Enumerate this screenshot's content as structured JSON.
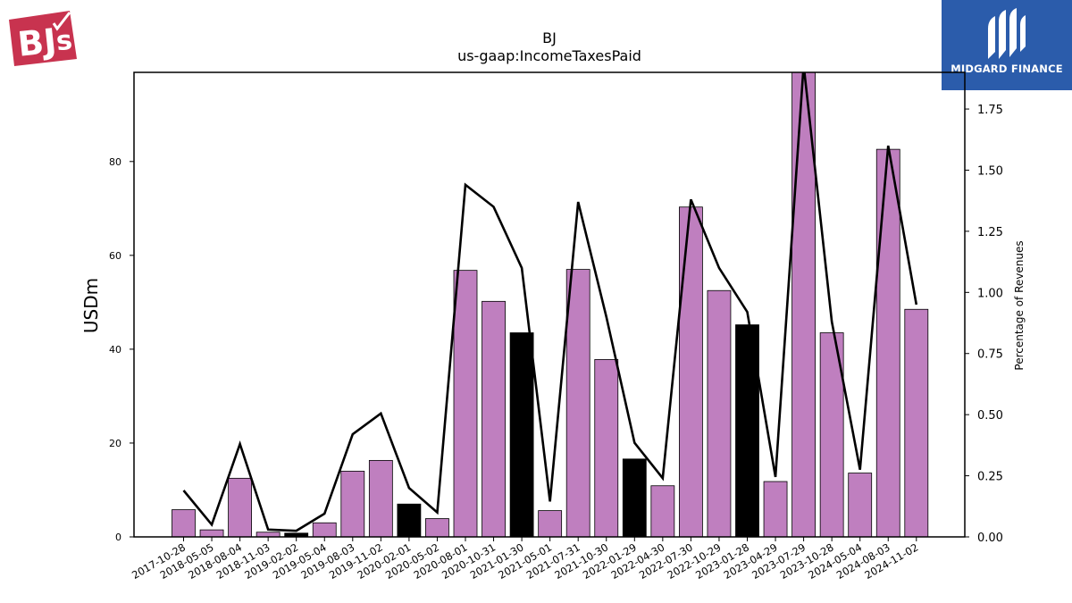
{
  "logos": {
    "left_name": "BJ's",
    "right_name": "MIDGARD FINANCE"
  },
  "chart_data": {
    "type": "bar",
    "title": "BJ",
    "subtitle": "us-gaap:IncomeTaxesPaid",
    "ylabel": "USDm",
    "y2label": "Percentage of Revenues",
    "ylim": [
      0,
      99
    ],
    "y2lim": [
      0,
      1.9
    ],
    "yticks": [
      0,
      20,
      40,
      60,
      80
    ],
    "y2ticks": [
      "0.00",
      "0.25",
      "0.50",
      "0.75",
      "1.00",
      "1.25",
      "1.50",
      "1.75"
    ],
    "categories": [
      "2017-10-28",
      "2018-05-05",
      "2018-08-04",
      "2018-11-03",
      "2019-02-02",
      "2019-05-04",
      "2019-08-03",
      "2019-11-02",
      "2020-02-01",
      "2020-05-02",
      "2020-08-01",
      "2020-10-31",
      "2021-01-30",
      "2021-05-01",
      "2021-07-31",
      "2021-10-30",
      "2022-01-29",
      "2022-04-30",
      "2022-07-30",
      "2022-10-29",
      "2023-01-28",
      "2023-04-29",
      "2023-07-29",
      "2023-10-28",
      "2024-05-04",
      "2024-08-03",
      "2024-11-02"
    ],
    "series": [
      {
        "values": [
          5.8,
          1.5,
          12.5,
          1.0,
          0.8,
          3.0,
          14.0,
          16.3,
          7.0,
          3.9,
          56.8,
          50.2,
          43.5,
          5.6,
          57.0,
          37.8,
          16.6,
          10.9,
          70.3,
          52.5,
          45.2,
          11.8,
          99.0,
          43.5,
          13.6,
          82.6,
          48.5
        ]
      },
      {
        "values": [
          0.19,
          0.05,
          0.38,
          0.03,
          0.025,
          0.095,
          0.42,
          0.505,
          0.2,
          0.1,
          1.44,
          1.35,
          1.1,
          0.145,
          1.37,
          0.9,
          0.385,
          0.24,
          1.38,
          1.1,
          0.92,
          0.245,
          1.93,
          0.88,
          0.275,
          1.6,
          0.95
        ]
      }
    ],
    "bar_colors": [
      "#bf7fbf",
      "#bf7fbf",
      "#bf7fbf",
      "#bf7fbf",
      "#000000",
      "#bf7fbf",
      "#bf7fbf",
      "#bf7fbf",
      "#000000",
      "#bf7fbf",
      "#bf7fbf",
      "#bf7fbf",
      "#000000",
      "#bf7fbf",
      "#bf7fbf",
      "#bf7fbf",
      "#000000",
      "#bf7fbf",
      "#bf7fbf",
      "#bf7fbf",
      "#000000",
      "#bf7fbf",
      "#bf7fbf",
      "#bf7fbf",
      "#bf7fbf",
      "#bf7fbf",
      "#bf7fbf"
    ],
    "line_color": "#000000",
    "grid": false
  }
}
